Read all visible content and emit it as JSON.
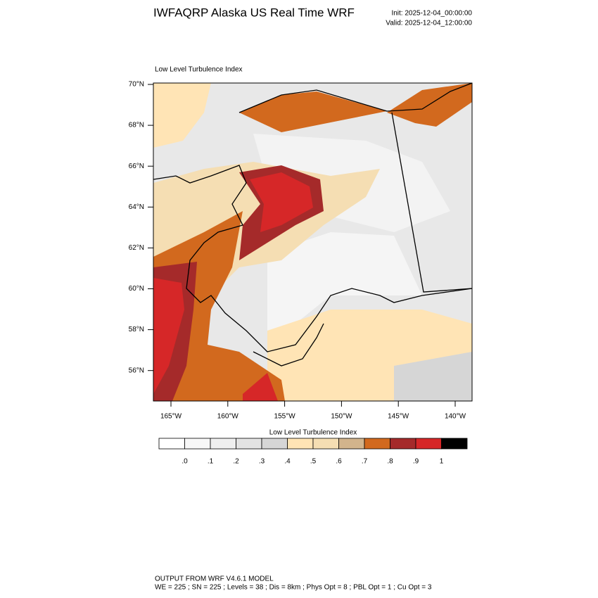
{
  "header": {
    "title": "IWFAQRP Alaska US Real Time WRF",
    "init": "Init: 2025-12-04_00:00:00",
    "valid": "Valid: 2025-12-04_12:00:00"
  },
  "map": {
    "title": "Low Level Turbulence Index",
    "lat_labels": [
      "70°N",
      "68°N",
      "66°N",
      "64°N",
      "62°N",
      "60°N",
      "58°N",
      "56°N"
    ],
    "lon_labels": [
      "165°W",
      "160°W",
      "155°W",
      "150°W",
      "145°W",
      "140°W"
    ]
  },
  "colorbar": {
    "title": "Low Level Turbulence Index",
    "colors": [
      "#ffffff",
      "#f7f7f7",
      "#efefef",
      "#e3e3e3",
      "#d6d6d6",
      "#ffe4b5",
      "#f5deb3",
      "#d2b48c",
      "#d2691e",
      "#a52a2a",
      "#d62728",
      "#000000"
    ],
    "labels": [
      ".0",
      ".1",
      ".2",
      ".3",
      ".4",
      ".5",
      ".6",
      ".7",
      ".8",
      ".9",
      "1"
    ]
  },
  "footer": {
    "lines": [
      "OUTPUT FROM WRF V4.6.1 MODEL",
      "WE = 225 ; SN = 225 ; Levels = 38 ; Dis = 8km ; Phys Opt = 8 ; PBL Opt = 1 ; Cu Opt = 3"
    ]
  }
}
